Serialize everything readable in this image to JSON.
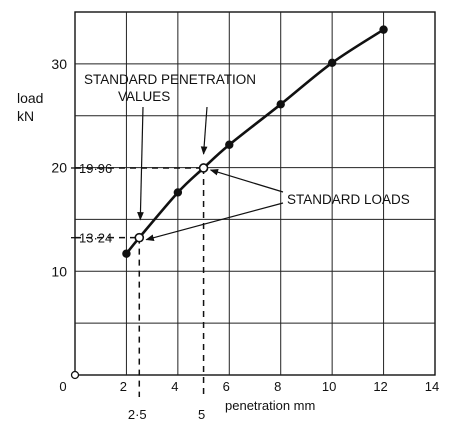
{
  "chart_data": {
    "type": "line",
    "xlabel": "penetration mm",
    "ylabel_line1": "load",
    "ylabel_line2": "kN",
    "xlim": [
      0,
      14
    ],
    "ylim": [
      0,
      35
    ],
    "x_ticks": [
      0,
      2,
      4,
      6,
      8,
      10,
      12,
      14
    ],
    "y_ticks": [
      10,
      20,
      30
    ],
    "origin_label": "0",
    "grid": true,
    "series": [
      {
        "x": [
          2.0,
          2.5,
          4.0,
          5.0,
          6.0,
          8.0,
          10.0,
          12.0
        ],
        "y": [
          11.7,
          13.24,
          17.6,
          19.96,
          22.2,
          26.1,
          30.1,
          33.3
        ],
        "markers": [
          "solid",
          "open",
          "solid",
          "open",
          "solid",
          "solid",
          "solid",
          "solid"
        ]
      }
    ],
    "standard_points": [
      {
        "x": 2.5,
        "y": 13.24,
        "x_label": "2·5",
        "y_label": "13·24"
      },
      {
        "x": 5.0,
        "y": 19.96,
        "x_label": "5",
        "y_label": "19·96"
      }
    ],
    "annotations": {
      "penetration_line1": "STANDARD PENETRATION",
      "penetration_line2": "VALUES",
      "loads": "STANDARD LOADS"
    }
  }
}
